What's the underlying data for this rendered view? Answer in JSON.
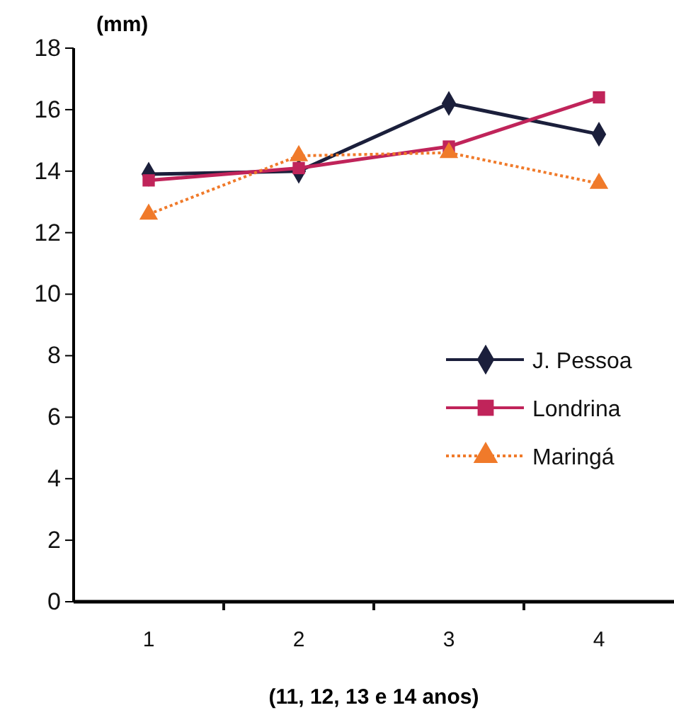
{
  "chart_data": {
    "type": "line",
    "ylabel": "(mm)",
    "xlabel": "(11, 12, 13 e 14 anos)",
    "categories": [
      "1",
      "2",
      "3",
      "4"
    ],
    "series": [
      {
        "name": "J. Pessoa",
        "color": "#1b1f3b",
        "marker": "diamond",
        "line_style": "solid",
        "values": [
          13.9,
          14.0,
          16.2,
          15.2
        ]
      },
      {
        "name": "Londrina",
        "color": "#c0245a",
        "marker": "square",
        "line_style": "solid",
        "values": [
          13.7,
          14.1,
          14.8,
          16.4
        ]
      },
      {
        "name": "Maringá",
        "color": "#f07a2a",
        "marker": "triangle",
        "line_style": "dotted",
        "values": [
          12.6,
          14.5,
          14.6,
          13.6
        ]
      }
    ],
    "ylim": [
      0,
      18
    ],
    "yticks": [
      0,
      2,
      4,
      6,
      8,
      10,
      12,
      14,
      16,
      18
    ],
    "grid": false,
    "legend": "right"
  }
}
